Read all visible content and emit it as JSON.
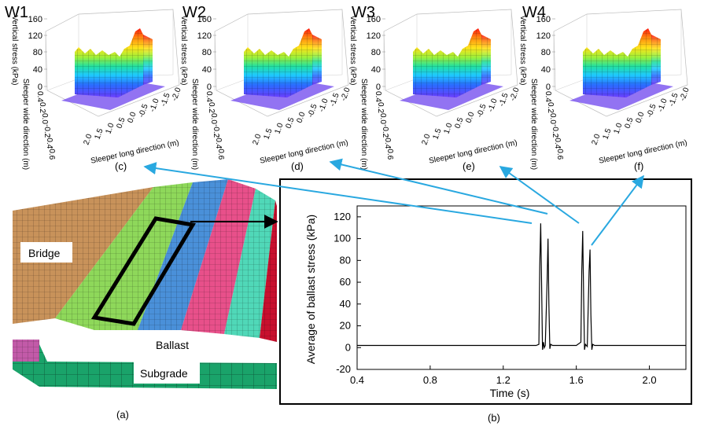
{
  "panels_3d": [
    {
      "title": "W1",
      "caption": "(c)"
    },
    {
      "title": "W2",
      "caption": "(d)"
    },
    {
      "title": "W3",
      "caption": "(e)"
    },
    {
      "title": "W4",
      "caption": "(f)"
    }
  ],
  "surface_axes": {
    "z_label": "Vertical stress (kPa)",
    "y_label": "Sleeper wide direction (m)",
    "x_label": "Sleeper long direction (m)",
    "z_ticks": [
      "0",
      "40",
      "80",
      "120",
      "160"
    ],
    "y_ticks": [
      "0.4",
      "0.2",
      "0.0",
      "-0.2",
      "-0.4",
      "-0.6"
    ],
    "x_ticks": [
      "2.0",
      "1.5",
      "1.0",
      "0.5",
      "0.0",
      "-0.5",
      "-1.0",
      "-1.5",
      "-2.0"
    ],
    "z_tick_values": [
      0,
      40,
      80,
      120,
      160
    ]
  },
  "model": {
    "caption": "(a)",
    "labels": {
      "bridge": "Bridge",
      "ballast": "Ballast",
      "subgrade": "Subgrade"
    },
    "colors": {
      "bridge": "#c8925a",
      "green": "#8ed85a",
      "blue": "#4a90d9",
      "pink": "#e8508a",
      "teal": "#50d8b8",
      "red": "#c8102e",
      "subgrade": "#1aa36a"
    }
  },
  "chart_data": {
    "type": "line",
    "caption": "(b)",
    "xlabel": "Time (s)",
    "ylabel": "Average of ballast stress (kPa)",
    "xlim": [
      0.4,
      2.2
    ],
    "ylim": [
      -20,
      130
    ],
    "x_ticks": [
      0.4,
      0.8,
      1.2,
      1.6,
      2.0
    ],
    "x_tick_labels": [
      "0.4",
      "0.8",
      "1.2",
      "1.6",
      "2.0"
    ],
    "y_ticks": [
      -20,
      0,
      20,
      40,
      60,
      80,
      100,
      120
    ],
    "y_tick_labels": [
      "-20",
      "0",
      "20",
      "40",
      "60",
      "80",
      "100",
      "120"
    ],
    "series": [
      {
        "x": [
          0.4,
          1.38,
          1.395,
          1.4,
          1.405,
          1.41,
          1.415,
          1.42,
          1.425,
          1.43,
          1.44,
          1.445,
          1.45,
          1.455,
          1.46,
          1.47,
          1.5,
          1.6,
          1.625,
          1.63,
          1.635,
          1.64,
          1.645,
          1.65,
          1.66,
          1.67,
          1.675,
          1.68,
          1.685,
          1.69,
          1.7,
          1.75,
          2.2
        ],
        "y": [
          2,
          2,
          3,
          75,
          114,
          60,
          -2,
          5,
          0,
          2,
          60,
          100,
          40,
          -1,
          3,
          2,
          2,
          2,
          5,
          70,
          107,
          45,
          -2,
          3,
          1,
          70,
          90,
          30,
          -2,
          3,
          2,
          2,
          2
        ]
      }
    ]
  }
}
